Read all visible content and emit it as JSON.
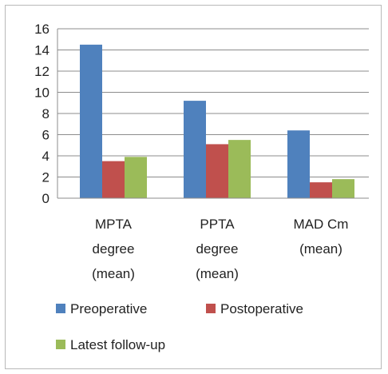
{
  "chart_data": {
    "type": "bar",
    "title": "",
    "xlabel": "",
    "ylabel": "",
    "ylim": [
      0,
      16
    ],
    "yticks": [
      0,
      2,
      4,
      6,
      8,
      10,
      12,
      14,
      16
    ],
    "grid": true,
    "legend_position": "bottom",
    "categories": [
      [
        "MPTA",
        "degree",
        "(mean)"
      ],
      [
        "PPTA",
        "degree",
        "(mean)"
      ],
      [
        "MAD Cm",
        "(mean)"
      ]
    ],
    "series": [
      {
        "name": "Preoperative",
        "color": "#4f81bd",
        "values": [
          14.5,
          9.2,
          6.4
        ]
      },
      {
        "name": "Postoperative",
        "color": "#c0504d",
        "values": [
          3.5,
          5.1,
          1.5
        ]
      },
      {
        "name": "Latest follow-up",
        "color": "#9bbb59",
        "values": [
          3.9,
          5.5,
          1.8
        ]
      }
    ]
  }
}
